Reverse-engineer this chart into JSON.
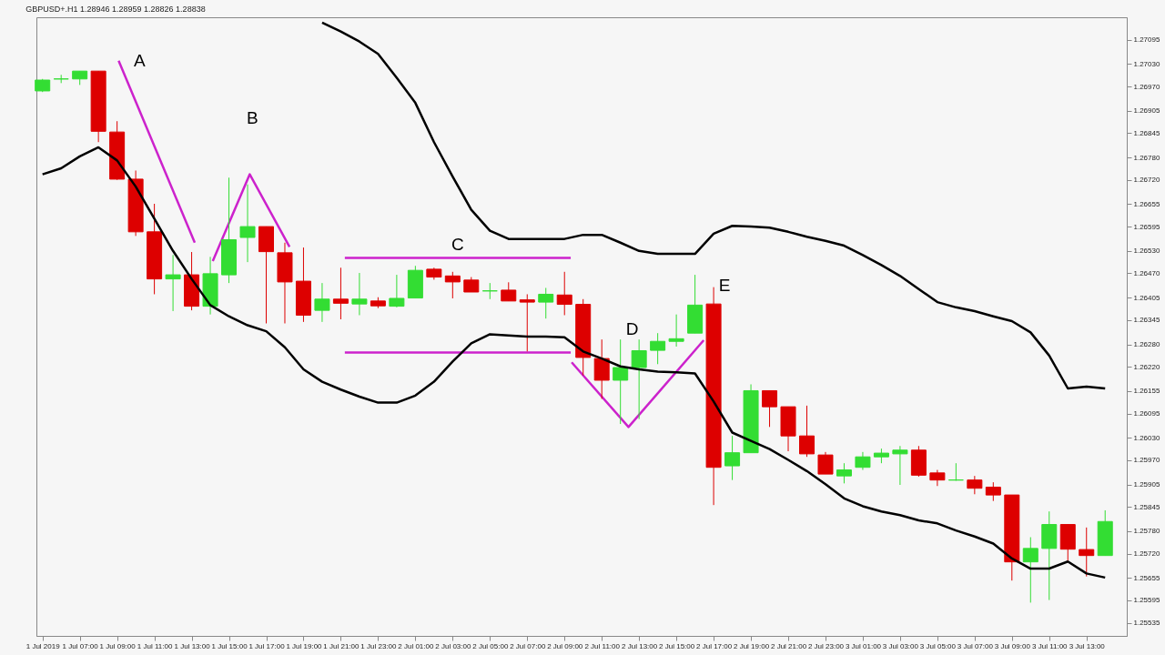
{
  "chart_data": {
    "type": "candlestick",
    "title": "GBPUSD+.H1  1.28946 1.28959 1.28826 1.28838",
    "x": [
      "2019-07-01T05:00",
      "2019-07-01T06:00",
      "2019-07-01T07:00",
      "2019-07-01T08:00",
      "2019-07-01T09:00",
      "2019-07-01T10:00",
      "2019-07-01T11:00",
      "2019-07-01T12:00",
      "2019-07-01T13:00",
      "2019-07-01T14:00",
      "2019-07-01T15:00",
      "2019-07-01T16:00",
      "2019-07-01T17:00",
      "2019-07-01T18:00",
      "2019-07-01T19:00",
      "2019-07-01T20:00",
      "2019-07-01T21:00",
      "2019-07-01T22:00",
      "2019-07-01T23:00",
      "2019-07-02T00:00",
      "2019-07-02T01:00",
      "2019-07-02T02:00",
      "2019-07-02T03:00",
      "2019-07-02T04:00",
      "2019-07-02T05:00",
      "2019-07-02T06:00",
      "2019-07-02T07:00",
      "2019-07-02T08:00",
      "2019-07-02T09:00",
      "2019-07-02T10:00",
      "2019-07-02T11:00",
      "2019-07-02T12:00",
      "2019-07-02T13:00",
      "2019-07-02T14:00",
      "2019-07-02T15:00",
      "2019-07-02T16:00",
      "2019-07-02T17:00",
      "2019-07-02T18:00",
      "2019-07-02T19:00",
      "2019-07-02T20:00",
      "2019-07-02T21:00",
      "2019-07-02T22:00",
      "2019-07-02T23:00",
      "2019-07-03T00:00",
      "2019-07-03T01:00",
      "2019-07-03T02:00",
      "2019-07-03T03:00",
      "2019-07-03T04:00",
      "2019-07-03T05:00",
      "2019-07-03T06:00",
      "2019-07-03T07:00",
      "2019-07-03T08:00",
      "2019-07-03T09:00",
      "2019-07-03T10:00",
      "2019-07-03T11:00",
      "2019-07-03T12:00",
      "2019-07-03T13:00",
      "2019-07-03T14:00"
    ],
    "ohlc": [
      [
        1.26958,
        1.2699,
        1.26955,
        1.26987
      ],
      [
        1.2699,
        1.27001,
        1.26979,
        1.2699
      ],
      [
        1.2699,
        1.27011,
        1.26974,
        1.27011
      ],
      [
        1.27011,
        1.27011,
        1.26821,
        1.2685
      ],
      [
        1.26848,
        1.26877,
        1.2672,
        1.26722
      ],
      [
        1.26722,
        1.26745,
        1.2657,
        1.26581
      ],
      [
        1.26581,
        1.26656,
        1.26414,
        1.26455
      ],
      [
        1.26455,
        1.26519,
        1.26369,
        1.26466
      ],
      [
        1.26466,
        1.26527,
        1.26371,
        1.26382
      ],
      [
        1.26382,
        1.26514,
        1.2636,
        1.26469
      ],
      [
        1.26466,
        1.26726,
        1.26444,
        1.2656
      ],
      [
        1.26566,
        1.26708,
        1.265,
        1.26595
      ],
      [
        1.26595,
        1.26595,
        1.26336,
        1.26528
      ],
      [
        1.26525,
        1.26552,
        1.26336,
        1.26447
      ],
      [
        1.26449,
        1.26539,
        1.2634,
        1.26358
      ],
      [
        1.26371,
        1.26444,
        1.2634,
        1.26401
      ],
      [
        1.26401,
        1.26485,
        1.26347,
        1.2639
      ],
      [
        1.26388,
        1.26471,
        1.26358,
        1.26401
      ],
      [
        1.26396,
        1.26406,
        1.26377,
        1.26383
      ],
      [
        1.26382,
        1.26466,
        1.26379,
        1.26403
      ],
      [
        1.26404,
        1.2649,
        1.26404,
        1.26478
      ],
      [
        1.26481,
        1.26485,
        1.26453,
        1.2646
      ],
      [
        1.26463,
        1.26474,
        1.26403,
        1.26447
      ],
      [
        1.26452,
        1.2646,
        1.2642,
        1.2642
      ],
      [
        1.26423,
        1.26444,
        1.26401,
        1.26423
      ],
      [
        1.26425,
        1.26446,
        1.26396,
        1.26396
      ],
      [
        1.26399,
        1.26414,
        1.26261,
        1.26393
      ],
      [
        1.26393,
        1.26431,
        1.26349,
        1.26414
      ],
      [
        1.26412,
        1.26474,
        1.26358,
        1.26387
      ],
      [
        1.26387,
        1.26401,
        1.26197,
        1.26245
      ],
      [
        1.26242,
        1.26293,
        1.26134,
        1.26184
      ],
      [
        1.26184,
        1.26293,
        1.26067,
        1.26218
      ],
      [
        1.26218,
        1.26293,
        1.2608,
        1.26263
      ],
      [
        1.26264,
        1.2631,
        1.26227,
        1.26288
      ],
      [
        1.26288,
        1.2636,
        1.26274,
        1.26295
      ],
      [
        1.2631,
        1.26466,
        1.2631,
        1.26385
      ],
      [
        1.26388,
        1.26433,
        1.2585,
        1.25951
      ],
      [
        1.25955,
        1.26035,
        1.25917,
        1.2599
      ],
      [
        1.2599,
        1.26173,
        1.2599,
        1.26156
      ],
      [
        1.26156,
        1.26156,
        1.26059,
        1.26113
      ],
      [
        1.26113,
        1.26113,
        1.25994,
        1.26035
      ],
      [
        1.26035,
        1.26116,
        1.25979,
        1.25987
      ],
      [
        1.25984,
        1.25992,
        1.25933,
        1.25933
      ],
      [
        1.25928,
        1.25962,
        1.25908,
        1.25944
      ],
      [
        1.25951,
        1.25992,
        1.25944,
        1.25979
      ],
      [
        1.25979,
        1.26001,
        1.25962,
        1.25989
      ],
      [
        1.25987,
        1.26008,
        1.25904,
        1.25997
      ],
      [
        1.25997,
        1.26008,
        1.25926,
        1.2593
      ],
      [
        1.25936,
        1.25944,
        1.25901,
        1.25917
      ],
      [
        1.25917,
        1.25962,
        1.25915,
        1.25917
      ],
      [
        1.25917,
        1.25928,
        1.25879,
        1.25895
      ],
      [
        1.25898,
        1.25911,
        1.25861,
        1.25877
      ],
      [
        1.25877,
        1.25877,
        1.25648,
        1.25698
      ],
      [
        1.25698,
        1.25764,
        1.25589,
        1.25734
      ],
      [
        1.25734,
        1.25833,
        1.25596,
        1.25798
      ],
      [
        1.25798,
        1.25798,
        1.25702,
        1.25732
      ],
      [
        1.25731,
        1.2579,
        1.25659,
        1.25715
      ],
      [
        1.25715,
        1.25836,
        1.25715,
        1.25806
      ]
    ],
    "colors": [
      "#33dd33",
      "#33dd33",
      "#33dd33",
      "#dd0000",
      "#dd0000",
      "#dd0000",
      "#dd0000",
      "#33dd33",
      "#dd0000",
      "#33dd33",
      "#33dd33",
      "#33dd33",
      "#dd0000",
      "#dd0000",
      "#dd0000",
      "#33dd33",
      "#dd0000",
      "#33dd33",
      "#dd0000",
      "#33dd33",
      "#33dd33",
      "#dd0000",
      "#dd0000",
      "#dd0000",
      "#33dd33",
      "#dd0000",
      "#dd0000",
      "#33dd33",
      "#dd0000",
      "#dd0000",
      "#dd0000",
      "#33dd33",
      "#33dd33",
      "#33dd33",
      "#33dd33",
      "#33dd33",
      "#dd0000",
      "#33dd33",
      "#33dd33",
      "#dd0000",
      "#dd0000",
      "#dd0000",
      "#dd0000",
      "#33dd33",
      "#33dd33",
      "#33dd33",
      "#33dd33",
      "#dd0000",
      "#dd0000",
      "#33dd33",
      "#dd0000",
      "#dd0000",
      "#dd0000",
      "#33dd33",
      "#33dd33",
      "#dd0000",
      "#dd0000",
      "#33dd33"
    ],
    "series": [
      {
        "type": "line",
        "color": "#000000",
        "x": [
          "2019-07-01T20:00",
          "2019-07-01T21:00",
          "2019-07-01T22:00",
          "2019-07-01T23:00",
          "2019-07-02T00:00",
          "2019-07-02T01:00",
          "2019-07-02T02:00",
          "2019-07-02T03:00",
          "2019-07-02T04:00",
          "2019-07-02T05:00",
          "2019-07-02T06:00",
          "2019-07-02T07:00",
          "2019-07-02T08:00",
          "2019-07-02T09:00",
          "2019-07-02T10:00",
          "2019-07-02T11:00",
          "2019-07-02T12:00",
          "2019-07-02T13:00",
          "2019-07-02T14:00",
          "2019-07-02T15:00",
          "2019-07-02T16:00",
          "2019-07-02T17:00",
          "2019-07-02T18:00",
          "2019-07-02T19:00",
          "2019-07-02T20:00",
          "2019-07-02T21:00",
          "2019-07-02T22:00",
          "2019-07-02T23:00",
          "2019-07-03T00:00",
          "2019-07-03T01:00",
          "2019-07-03T02:00",
          "2019-07-03T03:00",
          "2019-07-03T04:00",
          "2019-07-03T05:00",
          "2019-07-03T06:00",
          "2019-07-03T07:00",
          "2019-07-03T08:00",
          "2019-07-03T09:00",
          "2019-07-03T10:00",
          "2019-07-03T11:00",
          "2019-07-03T12:00",
          "2019-07-03T13:00",
          "2019-07-03T14:00"
        ],
        "values": [
          1.27141,
          1.27117,
          1.2709,
          1.27057,
          1.26993,
          1.26926,
          1.26821,
          1.26729,
          1.2664,
          1.26584,
          1.26562,
          1.26562,
          1.26562,
          1.26562,
          1.26573,
          1.26573,
          1.26552,
          1.2653,
          1.26522,
          1.26522,
          1.26522,
          1.26576,
          1.26597,
          1.26595,
          1.26592,
          1.26581,
          1.26568,
          1.26557,
          1.26544,
          1.26519,
          1.26492,
          1.26463,
          1.26428,
          1.26393,
          1.26379,
          1.26369,
          1.26355,
          1.26342,
          1.26312,
          1.2625,
          1.26162,
          1.26167,
          1.26162
        ]
      },
      {
        "type": "line",
        "color": "#000000",
        "x": [
          "2019-07-01T05:00",
          "2019-07-01T06:00",
          "2019-07-01T07:00",
          "2019-07-01T08:00",
          "2019-07-01T09:00",
          "2019-07-01T10:00",
          "2019-07-01T11:00",
          "2019-07-01T12:00",
          "2019-07-01T13:00",
          "2019-07-01T14:00",
          "2019-07-01T15:00",
          "2019-07-01T16:00",
          "2019-07-01T17:00",
          "2019-07-01T18:00",
          "2019-07-01T19:00",
          "2019-07-01T20:00",
          "2019-07-01T21:00",
          "2019-07-01T22:00",
          "2019-07-01T23:00",
          "2019-07-02T00:00",
          "2019-07-02T01:00",
          "2019-07-02T02:00",
          "2019-07-02T03:00",
          "2019-07-02T04:00",
          "2019-07-02T05:00",
          "2019-07-02T06:00",
          "2019-07-02T07:00",
          "2019-07-02T08:00",
          "2019-07-02T09:00",
          "2019-07-02T10:00",
          "2019-07-02T11:00",
          "2019-07-02T12:00",
          "2019-07-02T13:00",
          "2019-07-02T14:00",
          "2019-07-02T15:00",
          "2019-07-02T16:00",
          "2019-07-02T17:00",
          "2019-07-02T18:00",
          "2019-07-02T19:00",
          "2019-07-02T20:00",
          "2019-07-02T21:00",
          "2019-07-02T22:00",
          "2019-07-02T23:00",
          "2019-07-03T00:00",
          "2019-07-03T01:00",
          "2019-07-03T02:00",
          "2019-07-03T03:00",
          "2019-07-03T04:00",
          "2019-07-03T05:00",
          "2019-07-03T06:00",
          "2019-07-03T07:00",
          "2019-07-03T08:00",
          "2019-07-03T09:00",
          "2019-07-03T10:00",
          "2019-07-03T11:00",
          "2019-07-03T12:00",
          "2019-07-03T13:00",
          "2019-07-03T14:00"
        ],
        "values": [
          1.26735,
          1.26751,
          1.26783,
          1.26807,
          1.26772,
          1.26702,
          1.26616,
          1.2653,
          1.26455,
          1.26385,
          1.26355,
          1.26331,
          1.26315,
          1.26272,
          1.26213,
          1.2618,
          1.26159,
          1.2614,
          1.26124,
          1.26124,
          1.26143,
          1.2618,
          1.26234,
          1.26283,
          1.26307,
          1.26304,
          1.26301,
          1.26301,
          1.26299,
          1.26261,
          1.26242,
          1.26221,
          1.26213,
          1.26207,
          1.26205,
          1.26202,
          1.26127,
          1.26044,
          1.26022,
          1.26,
          1.25971,
          1.25941,
          1.25906,
          1.25868,
          1.25847,
          1.25833,
          1.25823,
          1.25809,
          1.25801,
          1.25782,
          1.25766,
          1.25747,
          1.25707,
          1.2568,
          1.2568,
          1.25699,
          1.25667,
          1.25656
        ]
      },
      {
        "type": "line",
        "color": "#cc22cc",
        "x": [
          "2019-07-01T09:05",
          "2019-07-01T13:10"
        ],
        "values": [
          1.27039,
          1.26552
        ]
      },
      {
        "type": "line",
        "color": "#cc22cc",
        "x": [
          "2019-07-01T14:08",
          "2019-07-01T16:07",
          "2019-07-01T18:15"
        ],
        "values": [
          1.26503,
          1.26735,
          1.26541
        ]
      },
      {
        "type": "line",
        "color": "#cc22cc",
        "x": [
          "2019-07-01T21:13",
          "2019-07-02T09:20"
        ],
        "values": [
          1.26511,
          1.26511
        ]
      },
      {
        "type": "line",
        "color": "#cc22cc",
        "x": [
          "2019-07-01T21:13",
          "2019-07-02T09:20"
        ],
        "values": [
          1.26258,
          1.26258
        ]
      },
      {
        "type": "line",
        "color": "#cc22cc",
        "x": [
          "2019-07-02T09:23",
          "2019-07-02T12:26",
          "2019-07-02T16:28"
        ],
        "values": [
          1.26232,
          1.26059,
          1.26291
        ]
      }
    ],
    "annotations": [
      "A",
      "B",
      "C",
      "D",
      "E"
    ],
    "xlim": [
      "2019-07-01T04:55",
      "2019-07-03T14:55"
    ],
    "xticks": [
      {
        "value": "2019-07-01T05:00",
        "label": "1 Jul 2019"
      },
      {
        "value": "2019-07-01T07:00",
        "label": "1 Jul 07:00"
      },
      {
        "value": "2019-07-01T09:00",
        "label": "1 Jul 09:00"
      },
      {
        "value": "2019-07-01T11:00",
        "label": "1 Jul 11:00"
      },
      {
        "value": "2019-07-01T13:00",
        "label": "1 Jul 13:00"
      },
      {
        "value": "2019-07-01T15:00",
        "label": "1 Jul 15:00"
      },
      {
        "value": "2019-07-01T17:00",
        "label": "1 Jul 17:00"
      },
      {
        "value": "2019-07-01T19:00",
        "label": "1 Jul 19:00"
      },
      {
        "value": "2019-07-01T21:00",
        "label": "1 Jul 21:00"
      },
      {
        "value": "2019-07-01T23:00",
        "label": "1 Jul 23:00"
      },
      {
        "value": "2019-07-02T01:00",
        "label": "2 Jul 01:00"
      },
      {
        "value": "2019-07-02T03:00",
        "label": "2 Jul 03:00"
      },
      {
        "value": "2019-07-02T05:00",
        "label": "2 Jul 05:00"
      },
      {
        "value": "2019-07-02T07:00",
        "label": "2 Jul 07:00"
      },
      {
        "value": "2019-07-02T09:00",
        "label": "2 Jul 09:00"
      },
      {
        "value": "2019-07-02T11:00",
        "label": "2 Jul 11:00"
      },
      {
        "value": "2019-07-02T13:00",
        "label": "2 Jul 13:00"
      },
      {
        "value": "2019-07-02T15:00",
        "label": "2 Jul 15:00"
      },
      {
        "value": "2019-07-02T17:00",
        "label": "2 Jul 17:00"
      },
      {
        "value": "2019-07-02T19:00",
        "label": "2 Jul 19:00"
      },
      {
        "value": "2019-07-02T21:00",
        "label": "2 Jul 21:00"
      },
      {
        "value": "2019-07-02T23:00",
        "label": "2 Jul 23:00"
      },
      {
        "value": "2019-07-03T01:00",
        "label": "3 Jul 01:00"
      },
      {
        "value": "2019-07-03T03:00",
        "label": "3 Jul 03:00"
      },
      {
        "value": "2019-07-03T05:00",
        "label": "3 Jul 05:00"
      },
      {
        "value": "2019-07-03T07:00",
        "label": "3 Jul 07:00"
      },
      {
        "value": "2019-07-03T09:00",
        "label": "3 Jul 09:00"
      },
      {
        "value": "2019-07-03T11:00",
        "label": "3 Jul 11:00"
      },
      {
        "value": "2019-07-03T13:00",
        "label": "3 Jul 13:00"
      }
    ],
    "ylim": [
      1.255,
      1.27155
    ],
    "yticks": [
      {
        "value": 1.27095,
        "label": "1.27095"
      },
      {
        "value": 1.2703,
        "label": "1.27030"
      },
      {
        "value": 1.2697,
        "label": "1.26970"
      },
      {
        "value": 1.26905,
        "label": "1.26905"
      },
      {
        "value": 1.26845,
        "label": "1.26845"
      },
      {
        "value": 1.2678,
        "label": "1.26780"
      },
      {
        "value": 1.2672,
        "label": "1.26720"
      },
      {
        "value": 1.26655,
        "label": "1.26655"
      },
      {
        "value": 1.26595,
        "label": "1.26595"
      },
      {
        "value": 1.2653,
        "label": "1.26530"
      },
      {
        "value": 1.2647,
        "label": "1.26470"
      },
      {
        "value": 1.26405,
        "label": "1.26405"
      },
      {
        "value": 1.26345,
        "label": "1.26345"
      },
      {
        "value": 1.2628,
        "label": "1.26280"
      },
      {
        "value": 1.2622,
        "label": "1.26220"
      },
      {
        "value": 1.26155,
        "label": "1.26155"
      },
      {
        "value": 1.26095,
        "label": "1.26095"
      },
      {
        "value": 1.2603,
        "label": "1.26030"
      },
      {
        "value": 1.2597,
        "label": "1.25970"
      },
      {
        "value": 1.25905,
        "label": "1.25905"
      },
      {
        "value": 1.25845,
        "label": "1.25845"
      },
      {
        "value": 1.2578,
        "label": "1.25780"
      },
      {
        "value": 1.2572,
        "label": "1.25720"
      },
      {
        "value": 1.25655,
        "label": "1.25655"
      },
      {
        "value": 1.25595,
        "label": "1.25595"
      },
      {
        "value": 1.25535,
        "label": "1.25535"
      }
    ],
    "grid": false
  }
}
